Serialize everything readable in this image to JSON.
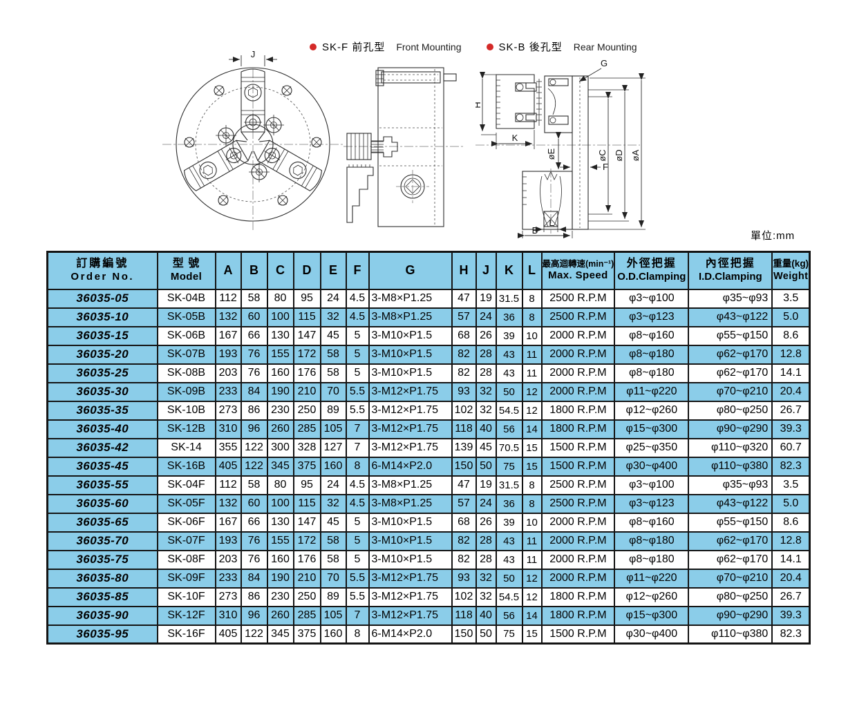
{
  "unit_label": "單位:mm",
  "legend": {
    "items": [
      {
        "label_zh": "SK-F 前孔型",
        "label_en": "Front Mounting"
      },
      {
        "label_zh": "SK-B 後孔型",
        "label_en": "Rear Mounting"
      }
    ],
    "bullet_color": "#d42a28"
  },
  "drawings": {
    "labels": {
      "j": "J",
      "h": "H",
      "k": "K",
      "g": "G",
      "b": "B",
      "l": "L",
      "f": "F",
      "oe": "øE",
      "oc": "øC",
      "od": "øD",
      "oa": "øA"
    }
  },
  "colors": {
    "row_blue": "#8bcde9",
    "border": "#141414"
  },
  "table": {
    "headers": {
      "order_zh": "訂購編號",
      "order_en": "Order No.",
      "model_zh": "型 號",
      "model_en": "Model",
      "dims": [
        "A",
        "B",
        "C",
        "D",
        "E",
        "F",
        "G",
        "H",
        "J",
        "K",
        "L"
      ],
      "speed_zh": "最高迴轉速(min⁻¹)",
      "speed_en": "Max. Speed",
      "od_zh": "外徑把握",
      "od_en": "O.D.Clamping",
      "id_zh": "內徑把握",
      "id_en": "I.D.Clamping",
      "weight_zh": "重量(kg)",
      "weight_en": "Weight"
    },
    "rows": [
      {
        "order": "36035-05",
        "model": "SK-04B",
        "a": "112",
        "b": "58",
        "c": "80",
        "d": "95",
        "e": "24",
        "f": "4.5",
        "g": "3-M8×P1.25",
        "h": "47",
        "j": "19",
        "k": "31.5",
        "l": "8",
        "speed": "2500 R.P.M",
        "od": "φ3~φ100",
        "id": "φ35~φ93",
        "weight": "3.5"
      },
      {
        "order": "36035-10",
        "model": "SK-05B",
        "a": "132",
        "b": "60",
        "c": "100",
        "d": "115",
        "e": "32",
        "f": "4.5",
        "g": "3-M8×P1.25",
        "h": "57",
        "j": "24",
        "k": "36",
        "l": "8",
        "speed": "2500 R.P.M",
        "od": "φ3~φ123",
        "id": "φ43~φ122",
        "weight": "5.0"
      },
      {
        "order": "36035-15",
        "model": "SK-06B",
        "a": "167",
        "b": "66",
        "c": "130",
        "d": "147",
        "e": "45",
        "f": "5",
        "g": "3-M10×P1.5",
        "h": "68",
        "j": "26",
        "k": "39",
        "l": "10",
        "speed": "2000 R.P.M",
        "od": "φ8~φ160",
        "id": "φ55~φ150",
        "weight": "8.6"
      },
      {
        "order": "36035-20",
        "model": "SK-07B",
        "a": "193",
        "b": "76",
        "c": "155",
        "d": "172",
        "e": "58",
        "f": "5",
        "g": "3-M10×P1.5",
        "h": "82",
        "j": "28",
        "k": "43",
        "l": "11",
        "speed": "2000 R.P.M",
        "od": "φ8~φ180",
        "id": "φ62~φ170",
        "weight": "12.8"
      },
      {
        "order": "36035-25",
        "model": "SK-08B",
        "a": "203",
        "b": "76",
        "c": "160",
        "d": "176",
        "e": "58",
        "f": "5",
        "g": "3-M10×P1.5",
        "h": "82",
        "j": "28",
        "k": "43",
        "l": "11",
        "speed": "2000 R.P.M",
        "od": "φ8~φ180",
        "id": "φ62~φ170",
        "weight": "14.1"
      },
      {
        "order": "36035-30",
        "model": "SK-09B",
        "a": "233",
        "b": "84",
        "c": "190",
        "d": "210",
        "e": "70",
        "f": "5.5",
        "g": "3-M12×P1.75",
        "h": "93",
        "j": "32",
        "k": "50",
        "l": "12",
        "speed": "2000 R.P.M",
        "od": "φ11~φ220",
        "id": "φ70~φ210",
        "weight": "20.4"
      },
      {
        "order": "36035-35",
        "model": "SK-10B",
        "a": "273",
        "b": "86",
        "c": "230",
        "d": "250",
        "e": "89",
        "f": "5.5",
        "g": "3-M12×P1.75",
        "h": "102",
        "j": "32",
        "k": "54.5",
        "l": "12",
        "speed": "1800 R.P.M",
        "od": "φ12~φ260",
        "id": "φ80~φ250",
        "weight": "26.7"
      },
      {
        "order": "36035-40",
        "model": "SK-12B",
        "a": "310",
        "b": "96",
        "c": "260",
        "d": "285",
        "e": "105",
        "f": "7",
        "g": "3-M12×P1.75",
        "h": "118",
        "j": "40",
        "k": "56",
        "l": "14",
        "speed": "1800 R.P.M",
        "od": "φ15~φ300",
        "id": "φ90~φ290",
        "weight": "39.3"
      },
      {
        "order": "36035-42",
        "model": "SK-14",
        "a": "355",
        "b": "122",
        "c": "300",
        "d": "328",
        "e": "127",
        "f": "7",
        "g": "3-M12×P1.75",
        "h": "139",
        "j": "45",
        "k": "70.5",
        "l": "15",
        "speed": "1500 R.P.M",
        "od": "φ25~φ350",
        "id": "φ110~φ320",
        "weight": "60.7"
      },
      {
        "order": "36035-45",
        "model": "SK-16B",
        "a": "405",
        "b": "122",
        "c": "345",
        "d": "375",
        "e": "160",
        "f": "8",
        "g": "6-M14×P2.0",
        "h": "150",
        "j": "50",
        "k": "75",
        "l": "15",
        "speed": "1500 R.P.M",
        "od": "φ30~φ400",
        "id": "φ110~φ380",
        "weight": "82.3"
      },
      {
        "order": "36035-55",
        "model": "SK-04F",
        "a": "112",
        "b": "58",
        "c": "80",
        "d": "95",
        "e": "24",
        "f": "4.5",
        "g": "3-M8×P1.25",
        "h": "47",
        "j": "19",
        "k": "31.5",
        "l": "8",
        "speed": "2500 R.P.M",
        "od": "φ3~φ100",
        "id": "φ35~φ93",
        "weight": "3.5"
      },
      {
        "order": "36035-60",
        "model": "SK-05F",
        "a": "132",
        "b": "60",
        "c": "100",
        "d": "115",
        "e": "32",
        "f": "4.5",
        "g": "3-M8×P1.25",
        "h": "57",
        "j": "24",
        "k": "36",
        "l": "8",
        "speed": "2500 R.P.M",
        "od": "φ3~φ123",
        "id": "φ43~φ122",
        "weight": "5.0"
      },
      {
        "order": "36035-65",
        "model": "SK-06F",
        "a": "167",
        "b": "66",
        "c": "130",
        "d": "147",
        "e": "45",
        "f": "5",
        "g": "3-M10×P1.5",
        "h": "68",
        "j": "26",
        "k": "39",
        "l": "10",
        "speed": "2000 R.P.M",
        "od": "φ8~φ160",
        "id": "φ55~φ150",
        "weight": "8.6"
      },
      {
        "order": "36035-70",
        "model": "SK-07F",
        "a": "193",
        "b": "76",
        "c": "155",
        "d": "172",
        "e": "58",
        "f": "5",
        "g": "3-M10×P1.5",
        "h": "82",
        "j": "28",
        "k": "43",
        "l": "11",
        "speed": "2000 R.P.M",
        "od": "φ8~φ180",
        "id": "φ62~φ170",
        "weight": "12.8"
      },
      {
        "order": "36035-75",
        "model": "SK-08F",
        "a": "203",
        "b": "76",
        "c": "160",
        "d": "176",
        "e": "58",
        "f": "5",
        "g": "3-M10×P1.5",
        "h": "82",
        "j": "28",
        "k": "43",
        "l": "11",
        "speed": "2000 R.P.M",
        "od": "φ8~φ180",
        "id": "φ62~φ170",
        "weight": "14.1"
      },
      {
        "order": "36035-80",
        "model": "SK-09F",
        "a": "233",
        "b": "84",
        "c": "190",
        "d": "210",
        "e": "70",
        "f": "5.5",
        "g": "3-M12×P1.75",
        "h": "93",
        "j": "32",
        "k": "50",
        "l": "12",
        "speed": "2000 R.P.M",
        "od": "φ11~φ220",
        "id": "φ70~φ210",
        "weight": "20.4"
      },
      {
        "order": "36035-85",
        "model": "SK-10F",
        "a": "273",
        "b": "86",
        "c": "230",
        "d": "250",
        "e": "89",
        "f": "5.5",
        "g": "3-M12×P1.75",
        "h": "102",
        "j": "32",
        "k": "54.5",
        "l": "12",
        "speed": "1800 R.P.M",
        "od": "φ12~φ260",
        "id": "φ80~φ250",
        "weight": "26.7"
      },
      {
        "order": "36035-90",
        "model": "SK-12F",
        "a": "310",
        "b": "96",
        "c": "260",
        "d": "285",
        "e": "105",
        "f": "7",
        "g": "3-M12×P1.75",
        "h": "118",
        "j": "40",
        "k": "56",
        "l": "14",
        "speed": "1800 R.P.M",
        "od": "φ15~φ300",
        "id": "φ90~φ290",
        "weight": "39.3"
      },
      {
        "order": "36035-95",
        "model": "SK-16F",
        "a": "405",
        "b": "122",
        "c": "345",
        "d": "375",
        "e": "160",
        "f": "8",
        "g": "6-M14×P2.0",
        "h": "150",
        "j": "50",
        "k": "75",
        "l": "15",
        "speed": "1500 R.P.M",
        "od": "φ30~φ400",
        "id": "φ110~φ380",
        "weight": "82.3"
      }
    ]
  }
}
